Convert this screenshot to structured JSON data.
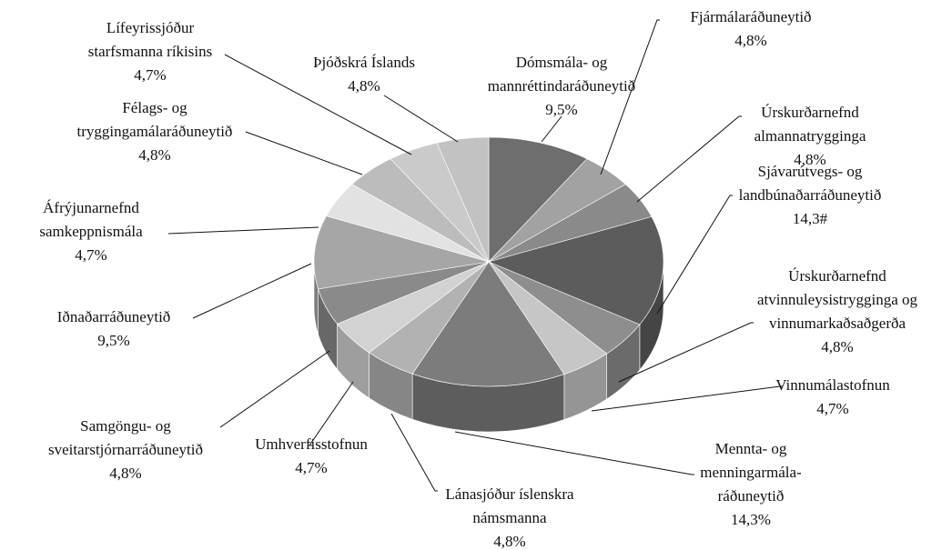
{
  "chart_data": {
    "type": "pie",
    "categories": [
      [
        "Dómsmála- og",
        "mannréttindaráðuneytið"
      ],
      [
        "Fjármálaráðuneytið"
      ],
      [
        "Úrskurðarnefnd",
        "almannatrygginga"
      ],
      [
        "Sjávarútvegs- og",
        "landbúnaðarráðuneytið"
      ],
      [
        "Úrskurðarnefnd",
        "atvinnuleysistrygginga og",
        "vinnumarkaðsaðgerða"
      ],
      [
        "Vinnumálastofnun"
      ],
      [
        "Mennta- og",
        "menningarmála-",
        "ráðuneytið"
      ],
      [
        "Lánasjóður íslenskra",
        "námsmanna"
      ],
      [
        "Umhverfisstofnun"
      ],
      [
        "Samgöngu- og",
        "sveitarstjórnarráðuneytið"
      ],
      [
        "Iðnaðarráðuneytið"
      ],
      [
        "Áfrýjunarnefnd",
        "samkeppnismála"
      ],
      [
        "Félags- og",
        "tryggingamálaráðuneytið"
      ],
      [
        "Lífeyrissjóður",
        "starfsmanna ríkisins"
      ],
      [
        "Þjóðskrá Íslands"
      ]
    ],
    "values": [
      9.5,
      4.8,
      4.8,
      14.3,
      4.8,
      4.7,
      14.3,
      4.8,
      4.7,
      4.8,
      9.5,
      4.7,
      4.8,
      4.7,
      4.8
    ],
    "value_labels": [
      "9,5%",
      "4,8%",
      "4,8%",
      "14,3#",
      "4,8%",
      "4,7%",
      "14,3%",
      "4,8%",
      "4,7%",
      "4,8%",
      "9,5%",
      "4,7%",
      "4,8%",
      "4,7%",
      "4,8%"
    ],
    "colors": [
      "#6e6e6e",
      "#a2a2a2",
      "#8a8a8a",
      "#5c5c5c",
      "#8e8e8e",
      "#c6c6c6",
      "#7c7c7c",
      "#b2b2b2",
      "#d2d2d2",
      "#8a8a8a",
      "#a6a6a6",
      "#e2e2e2",
      "#bcbcbc",
      "#cacaca",
      "#c2c2c2"
    ]
  }
}
